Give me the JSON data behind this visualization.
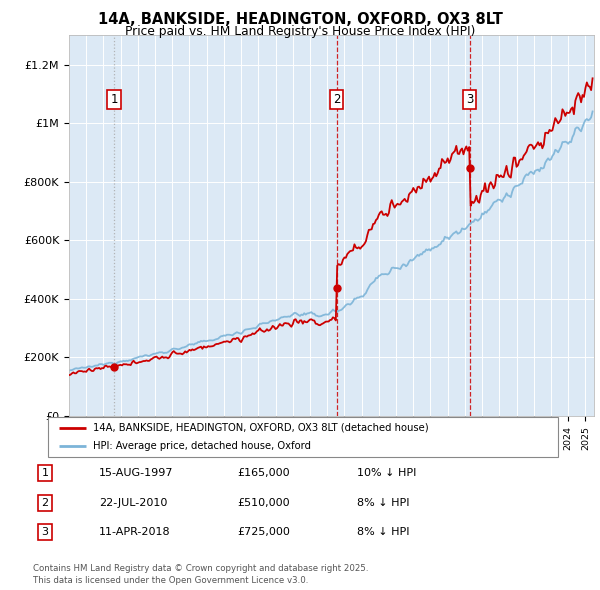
{
  "title": "14A, BANKSIDE, HEADINGTON, OXFORD, OX3 8LT",
  "subtitle": "Price paid vs. HM Land Registry's House Price Index (HPI)",
  "plot_bg_color": "#dce9f5",
  "hpi_color": "#7cb4d8",
  "price_color": "#cc0000",
  "vline1_color": "#aaaaaa",
  "vline23_color": "#cc0000",
  "ylim": [
    0,
    1300000
  ],
  "yticks": [
    0,
    200000,
    400000,
    600000,
    800000,
    1000000,
    1200000
  ],
  "ytick_labels": [
    "£0",
    "£200K",
    "£400K",
    "£600K",
    "£800K",
    "£1M",
    "£1.2M"
  ],
  "xstart": 1995,
  "xend": 2025.5,
  "legend_entries": [
    "14A, BANKSIDE, HEADINGTON, OXFORD, OX3 8LT (detached house)",
    "HPI: Average price, detached house, Oxford"
  ],
  "transactions": [
    {
      "num": 1,
      "date": "15-AUG-1997",
      "price": 165000,
      "pct": "10%",
      "dir": "↓",
      "year": 1997.62
    },
    {
      "num": 2,
      "date": "22-JUL-2010",
      "price": 510000,
      "pct": "8%",
      "dir": "↓",
      "year": 2010.55
    },
    {
      "num": 3,
      "date": "11-APR-2018",
      "price": 725000,
      "pct": "8%",
      "dir": "↓",
      "year": 2018.28
    }
  ],
  "footnote": "Contains HM Land Registry data © Crown copyright and database right 2025.\nThis data is licensed under the Open Government Licence v3.0."
}
